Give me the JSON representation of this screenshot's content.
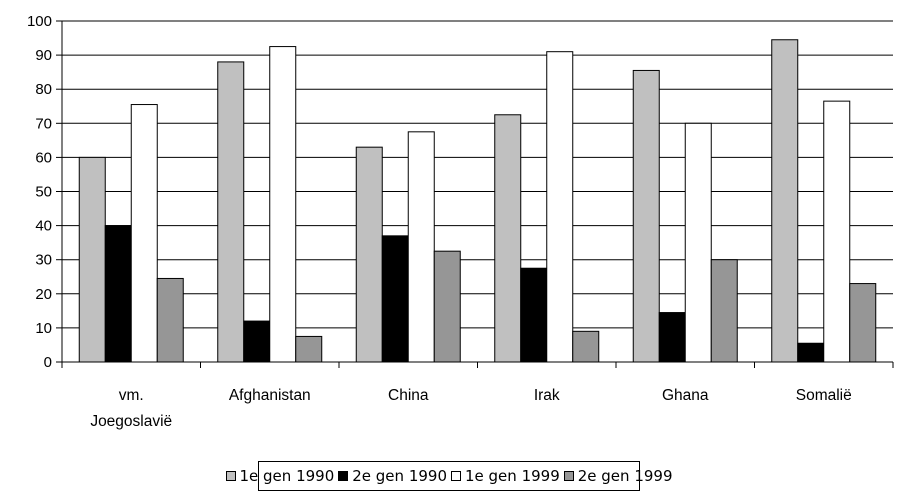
{
  "chart_data": {
    "type": "bar",
    "categories": [
      [
        "vm.",
        "Joegoslavië"
      ],
      [
        "Afghanistan"
      ],
      [
        "China"
      ],
      [
        "Irak"
      ],
      [
        "Ghana"
      ],
      [
        "Somalië"
      ]
    ],
    "series": [
      {
        "name": "1e gen 1990",
        "color": "#c0c0c0",
        "values": [
          60,
          88,
          63,
          72.5,
          85.5,
          94.5
        ]
      },
      {
        "name": "2e gen 1990",
        "color": "#000000",
        "values": [
          40,
          12,
          37,
          27.5,
          14.5,
          5.5
        ]
      },
      {
        "name": "1e gen 1999",
        "color": "#ffffff",
        "values": [
          75.5,
          92.5,
          67.5,
          91,
          70,
          76.5
        ]
      },
      {
        "name": "2e gen 1999",
        "color": "#969696",
        "values": [
          24.5,
          7.5,
          32.5,
          9,
          30,
          23
        ]
      }
    ],
    "ylim": [
      0,
      100
    ],
    "yticks": [
      "0",
      "10",
      "20",
      "30",
      "40",
      "50",
      "60",
      "70",
      "80",
      "90",
      "100"
    ],
    "grid": true,
    "legend_position": "bottom",
    "title": "",
    "xlabel": "",
    "ylabel": ""
  }
}
